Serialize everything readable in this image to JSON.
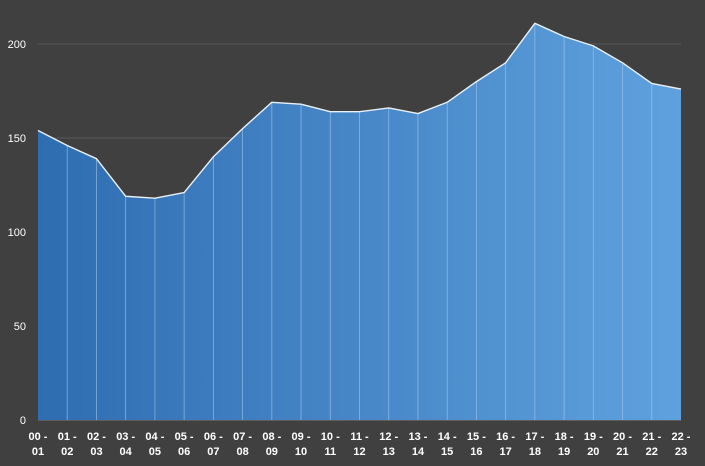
{
  "chart_data": {
    "type": "area",
    "title": "",
    "xlabel": "",
    "ylabel": "",
    "ylim": [
      0,
      200
    ],
    "yticks": [
      0,
      50,
      100,
      150,
      200
    ],
    "grid": "horizontal",
    "legend": "none",
    "categories": [
      [
        "00 -",
        "01"
      ],
      [
        "01 -",
        "02"
      ],
      [
        "02 -",
        "03"
      ],
      [
        "03 -",
        "04"
      ],
      [
        "04 -",
        "05"
      ],
      [
        "05 -",
        "06"
      ],
      [
        "06 -",
        "07"
      ],
      [
        "07 -",
        "08"
      ],
      [
        "08 -",
        "09"
      ],
      [
        "09 -",
        "10"
      ],
      [
        "10 -",
        "11"
      ],
      [
        "11 -",
        "12"
      ],
      [
        "12 -",
        "13"
      ],
      [
        "13 -",
        "14"
      ],
      [
        "14 -",
        "15"
      ],
      [
        "15 -",
        "16"
      ],
      [
        "16 -",
        "17"
      ],
      [
        "17 -",
        "18"
      ],
      [
        "18 -",
        "19"
      ],
      [
        "19 -",
        "20"
      ],
      [
        "20 -",
        "21"
      ],
      [
        "21 -",
        "22"
      ],
      [
        "22 -",
        "23"
      ]
    ],
    "series": [
      {
        "values": [
          154,
          146,
          139,
          119,
          118,
          121,
          140,
          155,
          169,
          168,
          164,
          164,
          166,
          163,
          169,
          180,
          190,
          211,
          204,
          199,
          190,
          179,
          176
        ]
      }
    ],
    "colors": {
      "background": "#404040",
      "area_left": "#2f6db1",
      "area_right": "#5fa1de",
      "line": "#e8f0f8",
      "divider": "#9fc6ea",
      "grid": "#595959",
      "text": "#ffffff"
    }
  }
}
